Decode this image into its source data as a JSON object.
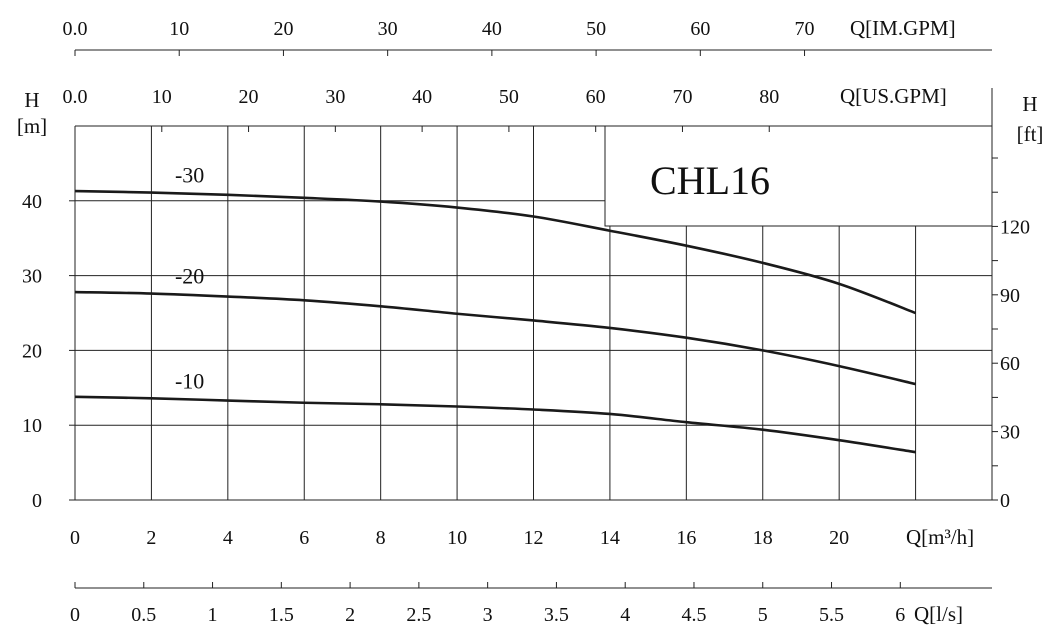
{
  "chart_data": {
    "type": "line",
    "title": "CHL16",
    "x": [
      0,
      2,
      4,
      6,
      8,
      10,
      12,
      14,
      16,
      18,
      20,
      22
    ],
    "xlim": [
      0,
      24
    ],
    "ylim": [
      0,
      50
    ],
    "xlabel": "Q[m³/h]",
    "ylabel_left": "H\n[m]",
    "ylabel_right": "H\n[ft]",
    "x_ticks": [
      "0",
      "2",
      "4",
      "6",
      "8",
      "10",
      "12",
      "14",
      "16",
      "18",
      "20"
    ],
    "y_ticks_left": [
      "0",
      "10",
      "20",
      "30",
      "40"
    ],
    "y_ticks_right": [
      "0",
      "30",
      "60",
      "90",
      "120"
    ],
    "grid": true,
    "series": [
      {
        "name": "-30",
        "values": [
          41.3,
          41.1,
          40.8,
          40.4,
          39.9,
          39.1,
          37.9,
          36.0,
          34.0,
          31.7,
          28.9,
          25.0
        ]
      },
      {
        "name": "-20",
        "values": [
          27.8,
          27.6,
          27.2,
          26.7,
          25.9,
          24.9,
          24.0,
          23.0,
          21.7,
          20.0,
          17.9,
          15.5
        ]
      },
      {
        "name": "-10",
        "values": [
          13.8,
          13.6,
          13.3,
          13.0,
          12.8,
          12.5,
          12.1,
          11.5,
          10.4,
          9.4,
          8.0,
          6.4
        ]
      }
    ],
    "secondary_axes": [
      {
        "label": "Q[IM.GPM]",
        "ticks": [
          "0.0",
          "10",
          "20",
          "30",
          "40",
          "50",
          "60",
          "70"
        ],
        "values": [
          0,
          10,
          20,
          30,
          40,
          50,
          60,
          70
        ]
      },
      {
        "label": "Q[US.GPM]",
        "ticks": [
          "0.0",
          "10",
          "20",
          "30",
          "40",
          "50",
          "60",
          "70",
          "80"
        ],
        "values": [
          0,
          10,
          20,
          30,
          40,
          50,
          60,
          70,
          80
        ]
      },
      {
        "label": "Q[l/s]",
        "ticks": [
          "0",
          "0.5",
          "1",
          "1.5",
          "2",
          "2.5",
          "3",
          "3.5",
          "4",
          "4.5",
          "5",
          "5.5",
          "6"
        ],
        "values": [
          0,
          0.5,
          1,
          1.5,
          2,
          2.5,
          3,
          3.5,
          4,
          4.5,
          5,
          5.5,
          6
        ]
      }
    ]
  }
}
